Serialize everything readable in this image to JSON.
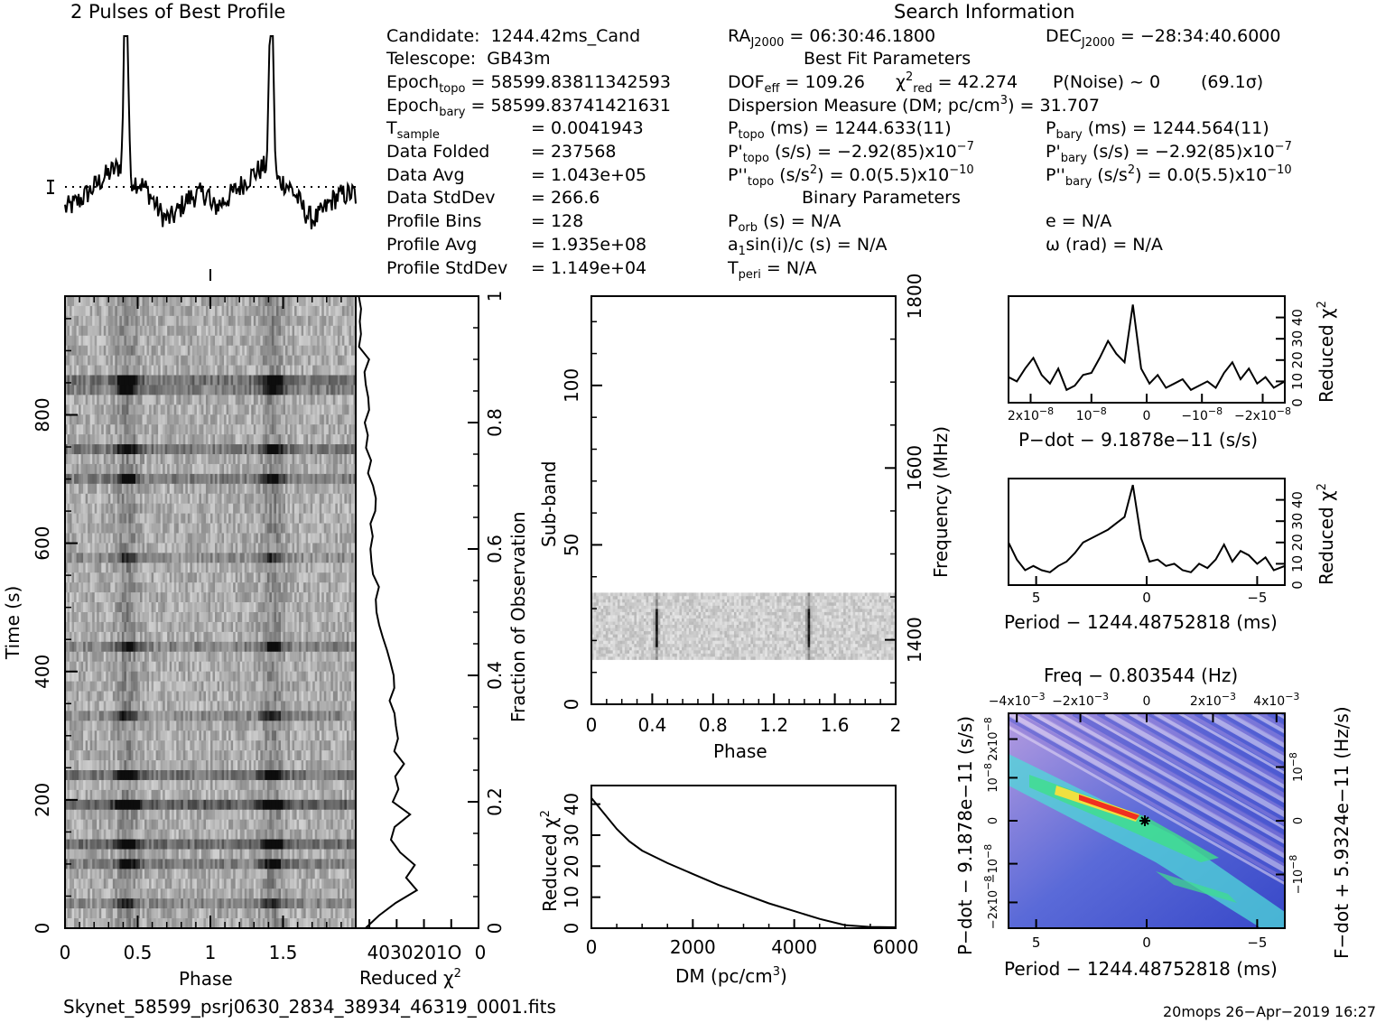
{
  "titles": {
    "profile": "2 Pulses of Best Profile",
    "search": "Search Information",
    "best_fit": "Best Fit Parameters",
    "binary": "Binary Parameters"
  },
  "info_left": [
    {
      "label": "Candidate:",
      "value": "1244.42ms_Cand"
    },
    {
      "label": "Telescope:",
      "value": "GB43m"
    },
    {
      "label": "Epoch",
      "sub": "topo",
      "value": "= 58599.83811342593"
    },
    {
      "label": "Epoch",
      "sub": "bary",
      "value": "= 58599.83741421631"
    },
    {
      "label": "T",
      "sub": "sample",
      "value": "=   0.0041943"
    },
    {
      "label": "Data Folded",
      "value": "=   237568"
    },
    {
      "label": "Data Avg",
      "value": "=   1.043e+05"
    },
    {
      "label": "Data StdDev",
      "value": "=   266.6"
    },
    {
      "label": "Profile Bins",
      "value": "=   128"
    },
    {
      "label": "Profile Avg",
      "value": "=   1.935e+08"
    },
    {
      "label": "Profile StdDev",
      "value": "=   1.149e+04"
    }
  ],
  "info_right": {
    "ra": "RA",
    "ra_sub": "J2000",
    "ra_value": "= 06:30:46.1800",
    "dec": "DEC",
    "dec_sub": "J2000",
    "dec_value": "= −28:34:40.6000",
    "dof": "DOF",
    "dof_sub": "eff",
    "dof_value": "= 109.26",
    "chi": "χ",
    "chi_sup": "2",
    "chi_sub": "red",
    "chi_value": "= 42.274",
    "pnoise": "P(Noise) ~ 0",
    "sigma": "(69.1σ)",
    "dm": "Dispersion Measure (DM; pc/cm",
    "dm_sup": "3",
    "dm_value": ") = 31.707",
    "ptopo": "P",
    "ptopo_sub": "topo",
    "ptopo_value": "(ms) =  1244.633(11)",
    "pbary": "P",
    "pbary_sub": "bary",
    "pbary_value": "(ms) =  1244.564(11)",
    "pdtopo": "P'",
    "pdtopo_sub": "topo",
    "pdtopo_value": "(s/s) = −2.92(85)x10",
    "pdtopo_exp": "−7",
    "pdbary": "P'",
    "pdbary_sub": "bary",
    "pdbary_value": "(s/s) = −2.92(85)x10",
    "pdbary_exp": "−7",
    "pddtopo": "P''",
    "pddtopo_sub": "topo",
    "pddtopo_value": "(s/s",
    "pddtopo_sup": "2",
    "pddtopo_value2": ") = 0.0(5.5)x10",
    "pddtopo_exp": "−10",
    "pddbary": "P''",
    "pddbary_sub": "bary",
    "pddbary_value": "(s/s",
    "pddbary_sup": "2",
    "pddbary_value2": ") = 0.0(5.5)x10",
    "pddbary_exp": "−10",
    "porb": "P",
    "porb_sub": "orb",
    "porb_value": "(s) = N/A",
    "e": "e = N/A",
    "a1": "a",
    "a1_sub": "1",
    "a1_value": "sin(i)/c (s) = N/A",
    "omega": "ω (rad) = N/A",
    "tperi": "T",
    "tperi_sub": "peri",
    "tperi_value": "= N/A"
  },
  "footer": {
    "filename": "Skynet_58599_psrj0630_2834_38934_46319_0001.fits",
    "stamp": "20mops 26−Apr−2019 16:27"
  },
  "chart_data": [
    {
      "type": "line",
      "id": "pulse_profile",
      "title": "2 Pulses of Best Profile",
      "x": "phase 0-2 (two repeats of one profile)",
      "peak_phase": [
        0.42,
        1.42
      ]
    },
    {
      "type": "heatmap",
      "id": "time_phase",
      "xlabel": "Phase",
      "ylabel": "Time (s)",
      "xticks": [
        "0",
        "0.5",
        "1",
        "1.5"
      ],
      "yticks": [
        "0",
        "200",
        "400",
        "600",
        "800"
      ],
      "xlim": [
        0,
        2
      ],
      "ylim": [
        0,
        985
      ]
    },
    {
      "type": "line",
      "id": "time_chi2",
      "xlabel": "Reduced χ",
      "xlabel_sup": "2",
      "xtick_text": "4030201O",
      "xtick_zero": "0",
      "right_label": "Fraction of Observation",
      "right_ticks": [
        "0",
        "0.2",
        "0.4",
        "0.6",
        "0.8",
        "1"
      ],
      "fraction": [
        0.0,
        0.02,
        0.04,
        0.06,
        0.08,
        0.1,
        0.12,
        0.14,
        0.16,
        0.18,
        0.2,
        0.22,
        0.24,
        0.26,
        0.28,
        0.3,
        0.32,
        0.34,
        0.36,
        0.38,
        0.4,
        0.42,
        0.44,
        0.46,
        0.48,
        0.5,
        0.52,
        0.54,
        0.56,
        0.58,
        0.6,
        0.62,
        0.64,
        0.66,
        0.68,
        0.7,
        0.72,
        0.74,
        0.76,
        0.78,
        0.8,
        0.82,
        0.84,
        0.86,
        0.88,
        0.9,
        0.92,
        0.94,
        0.96,
        0.98,
        1.0
      ],
      "chi2": [
        42,
        36,
        30,
        22,
        26,
        24,
        28,
        33,
        30,
        26,
        31,
        30,
        31,
        28,
        30,
        30,
        31,
        30,
        32,
        31,
        32,
        33,
        34,
        35,
        36,
        38,
        38,
        37,
        38,
        39,
        40,
        38,
        39,
        38,
        38,
        39,
        40,
        39,
        41,
        41,
        41,
        40,
        41,
        42,
        42,
        41,
        43,
        44,
        43,
        44,
        44
      ]
    },
    {
      "type": "heatmap",
      "id": "subband_phase",
      "xlabel": "Phase",
      "ylabel": "Sub-band",
      "right_label": "Frequency (MHz)",
      "xticks": [
        "0",
        "0.4",
        "0.8",
        "1.2",
        "1.6",
        "2"
      ],
      "yticks": [
        "0",
        "50",
        "100"
      ],
      "freq_ticks": [
        "1400",
        "1600",
        "1800"
      ],
      "occupied_subbands": [
        14,
        35
      ]
    },
    {
      "type": "line",
      "id": "dm_chi2",
      "xlabel": "DM (pc/cm",
      "xlabel_sup": "3",
      "xlabel_end": ")",
      "ylabel": "Reduced χ",
      "ylabel_sup": "2",
      "xticks": [
        "0",
        "2000",
        "4000",
        "6000"
      ],
      "yticks": [
        "0",
        "10",
        "20",
        "30",
        "40"
      ],
      "x": [
        0,
        250,
        500,
        750,
        1000,
        1500,
        2000,
        2500,
        3000,
        3500,
        4000,
        4500,
        5000,
        5500,
        6000
      ],
      "y": [
        42,
        37,
        32,
        28,
        25,
        21,
        17.5,
        14,
        11,
        8,
        5.5,
        3,
        1,
        0.4,
        0.3
      ]
    },
    {
      "type": "line",
      "id": "pdot_chi2",
      "xlabel": "P−dot − 9.1878e−11 (s/s)",
      "ylabel": "Reduced χ",
      "ylabel_sup": "2",
      "xticks": [
        "2x10",
        "10",
        "0",
        "−10",
        "−2x10"
      ],
      "xtick_exp": "−8",
      "yticks": [
        "0",
        "10",
        "20",
        "30",
        "40"
      ],
      "x_rel": [
        0.0,
        0.03,
        0.06,
        0.09,
        0.12,
        0.15,
        0.18,
        0.21,
        0.24,
        0.27,
        0.3,
        0.33,
        0.36,
        0.39,
        0.42,
        0.45,
        0.48,
        0.51,
        0.54,
        0.57,
        0.6,
        0.63,
        0.66,
        0.69,
        0.72,
        0.75,
        0.78,
        0.81,
        0.84,
        0.87,
        0.9,
        0.93,
        0.96,
        1.0
      ],
      "y": [
        12,
        10,
        16,
        21,
        13,
        9,
        16,
        6,
        8,
        13,
        14,
        21,
        29,
        23,
        19,
        46,
        16,
        9,
        13,
        7,
        9,
        11,
        6,
        8,
        10,
        7,
        14,
        19,
        11,
        16,
        9,
        12,
        7,
        10
      ]
    },
    {
      "type": "line",
      "id": "period_chi2",
      "xlabel": "Period − 1244.48752818 (ms)",
      "ylabel": "Reduced χ",
      "ylabel_sup": "2",
      "xticks": [
        "5",
        "0",
        "−5"
      ],
      "yticks": [
        "0",
        "10",
        "20",
        "30",
        "40"
      ],
      "x_rel": [
        0.0,
        0.03,
        0.06,
        0.09,
        0.12,
        0.15,
        0.18,
        0.21,
        0.24,
        0.27,
        0.3,
        0.33,
        0.36,
        0.39,
        0.42,
        0.45,
        0.48,
        0.51,
        0.54,
        0.57,
        0.6,
        0.63,
        0.66,
        0.69,
        0.72,
        0.75,
        0.78,
        0.81,
        0.84,
        0.87,
        0.9,
        0.93,
        0.96,
        1.0
      ],
      "y": [
        20,
        12,
        7,
        9,
        7,
        6,
        9,
        11,
        15,
        20,
        22,
        24,
        26,
        29,
        32,
        47,
        22,
        11,
        12,
        9,
        10,
        7,
        6,
        10,
        8,
        12,
        19,
        11,
        16,
        14,
        10,
        13,
        7,
        9
      ]
    },
    {
      "type": "heatmap",
      "id": "p_pdot",
      "title": "Freq − 0.803544 (Hz)",
      "xlabel": "Period − 1244.48752818 (ms)",
      "ylabel": "P−dot − 9.1878e−11 (s/s)",
      "right_label": "F−dot + 5.9324e−11 (Hz/s)",
      "xticks": [
        "5",
        "0",
        "−5"
      ],
      "top_ticks": [
        "−4x10",
        "−2x10",
        "0",
        "2x10",
        "4x10"
      ],
      "top_exp": "−3",
      "yticks": [
        "2x10",
        "10",
        "0",
        "−10",
        "−2x10"
      ],
      "ytick_exp": "−8",
      "right_ticks": [
        "10",
        "0",
        "−10"
      ],
      "right_exp": "−8",
      "best_point": [
        0,
        0
      ]
    }
  ]
}
